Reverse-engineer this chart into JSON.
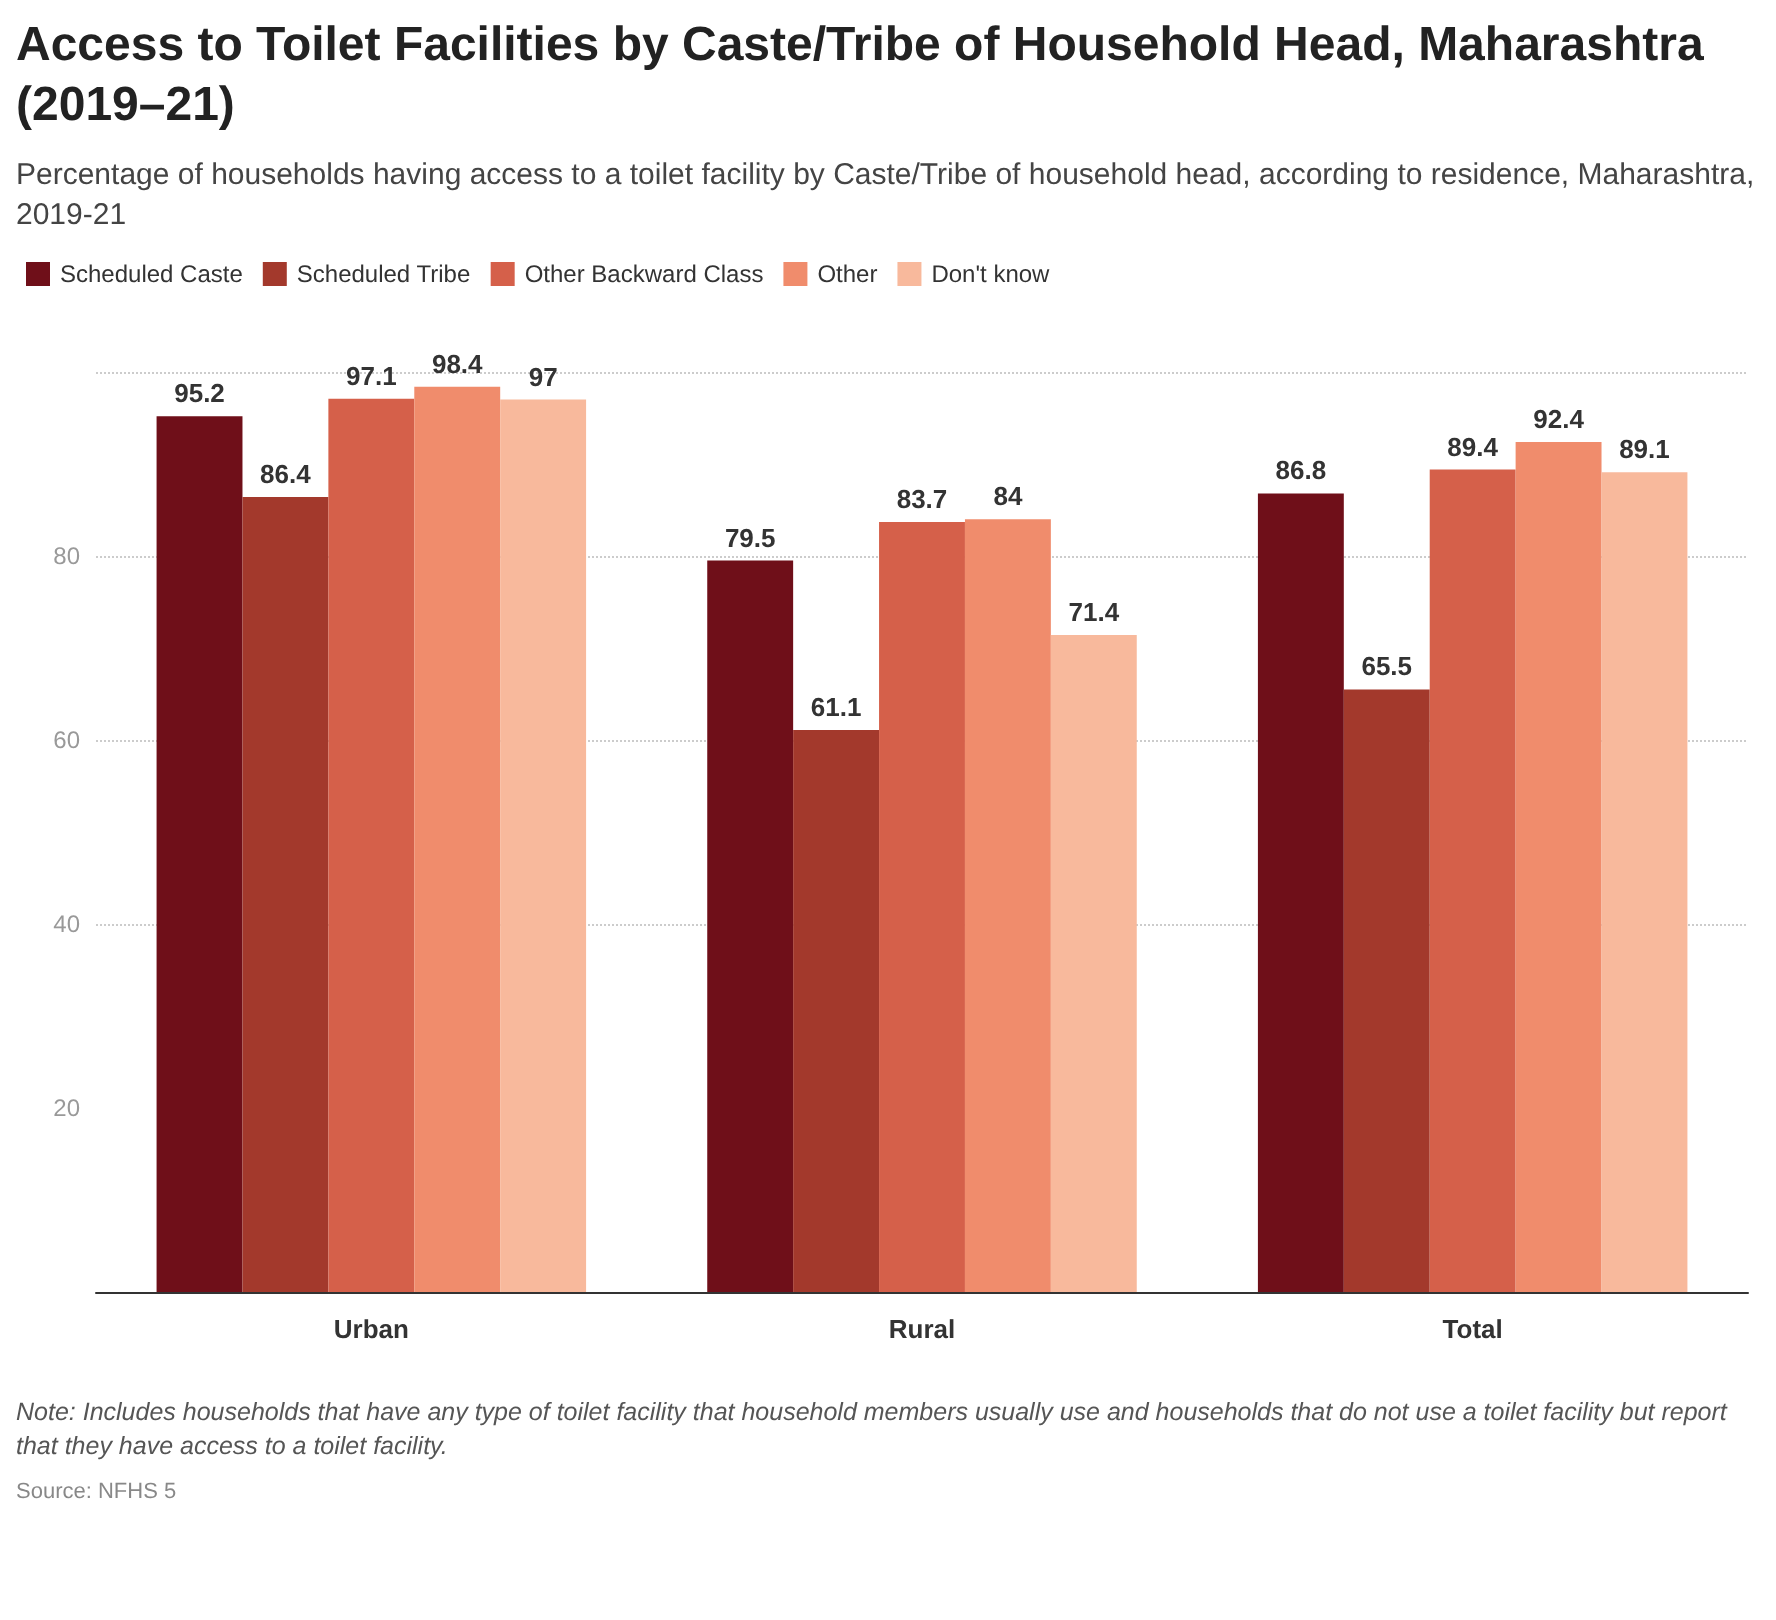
{
  "chart_data": {
    "type": "bar",
    "title": "Access to Toilet Facilities by Caste/Tribe of Household Head, Maharashtra (2019–21)",
    "subtitle": "Percentage of households having access to a toilet facility by Caste/Tribe of household head, according to residence, Maharashtra, 2019-21",
    "categories": [
      "Urban",
      "Rural",
      "Total"
    ],
    "series": [
      {
        "name": "Scheduled Caste",
        "color": "#6f0f19",
        "values": [
          95.2,
          79.5,
          86.8
        ]
      },
      {
        "name": "Scheduled Tribe",
        "color": "#a3392c",
        "values": [
          86.4,
          61.1,
          65.5
        ]
      },
      {
        "name": "Other Backward Class",
        "color": "#d5604a",
        "values": [
          97.1,
          83.7,
          89.4
        ]
      },
      {
        "name": "Other",
        "color": "#f08c6c",
        "values": [
          98.4,
          84,
          92.4
        ]
      },
      {
        "name": "Don't know",
        "color": "#f8b99c",
        "values": [
          97,
          71.4,
          89.1
        ]
      }
    ],
    "ylim": [
      0,
      100
    ],
    "yticks": [
      20,
      40,
      60,
      80,
      {
        "value": 100,
        "label": null
      }
    ],
    "grid": "y",
    "legend": "top left",
    "data_labels": true,
    "annotations": [
      "Note: Includes households that have any type of toilet facility that household members usually use and households that do not use a toilet facility but report that they have access to a toilet facility.",
      "Source: NFHS 5"
    ]
  }
}
